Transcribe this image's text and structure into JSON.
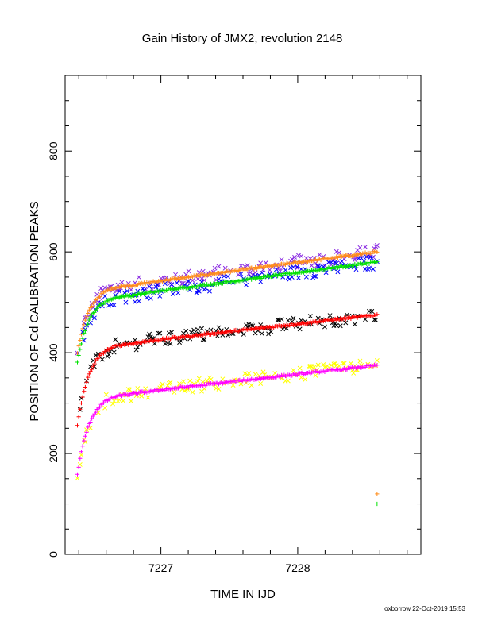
{
  "chart_data": {
    "type": "scatter",
    "title": "Gain History of JMX2, revolution 2148",
    "xlabel": "TIME IN IJD",
    "ylabel": "POSITION OF Cd CALIBRATION PEAKS",
    "xlim": [
      7226.3,
      7228.9
    ],
    "ylim": [
      0,
      950
    ],
    "x_ticks": [
      7227,
      7228
    ],
    "y_ticks": [
      0,
      200,
      400,
      600,
      800
    ],
    "grid": false,
    "legend": "none",
    "series": [
      {
        "color": "#8a2be2",
        "marker": "x",
        "t0": 7226.39,
        "t1": 7228.58,
        "y_start": 395,
        "y_sat": 535,
        "y_end": 600,
        "scatter": 14
      },
      {
        "color": "#ff8c1a",
        "marker": "+",
        "t0": 7226.39,
        "t1": 7228.58,
        "y_start": 400,
        "y_sat": 535,
        "y_end": 600,
        "scatter": 2
      },
      {
        "color": "#0000ff",
        "marker": "x",
        "t0": 7226.39,
        "t1": 7228.58,
        "y_start": 385,
        "y_sat": 515,
        "y_end": 580,
        "scatter": 14
      },
      {
        "color": "#00e000",
        "marker": "+",
        "t0": 7226.39,
        "t1": 7228.58,
        "y_start": 383,
        "y_sat": 515,
        "y_end": 580,
        "scatter": 2
      },
      {
        "color": "#000000",
        "marker": "x",
        "t0": 7226.39,
        "t1": 7228.58,
        "y_start": 260,
        "y_sat": 420,
        "y_end": 475,
        "scatter": 14
      },
      {
        "color": "#ff0000",
        "marker": "+",
        "t0": 7226.39,
        "t1": 7228.58,
        "y_start": 255,
        "y_sat": 420,
        "y_end": 475,
        "scatter": 2
      },
      {
        "color": "#ffff00",
        "marker": "x",
        "t0": 7226.39,
        "t1": 7228.58,
        "y_start": 160,
        "y_sat": 320,
        "y_end": 375,
        "scatter": 14
      },
      {
        "color": "#ff00ff",
        "marker": "+",
        "t0": 7226.39,
        "t1": 7228.58,
        "y_start": 158,
        "y_sat": 320,
        "y_end": 375,
        "scatter": 2
      }
    ],
    "isolated_points": [
      {
        "x": 7228.58,
        "y": 120,
        "color": "#ff8c1a"
      },
      {
        "x": 7228.58,
        "y": 100,
        "color": "#00e000"
      }
    ]
  },
  "footer": "oxborrow 22-Oct-2019 15:53"
}
